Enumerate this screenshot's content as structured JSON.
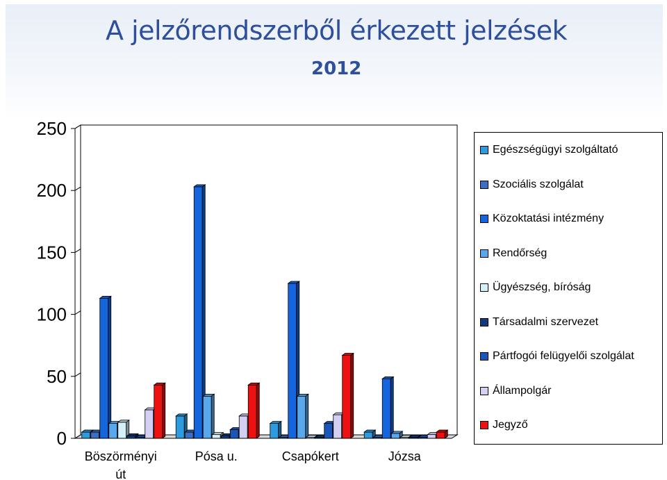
{
  "title": "A jelzőrendszerből érkezett jelzések",
  "subtitle": "2012",
  "chart_data": {
    "type": "bar",
    "categories": [
      "Böszörményi út",
      "Pósa u.",
      "Csapókert",
      "Józsa"
    ],
    "ylim": [
      0,
      250
    ],
    "yticks": [
      "0",
      "50",
      "100",
      "150",
      "200",
      "250"
    ],
    "legend_position": "right",
    "grid": false,
    "series": [
      {
        "name": "Egészségügyi szolgáltató",
        "color": "#2e9bde",
        "values": [
          5,
          18,
          12,
          5
        ]
      },
      {
        "name": "Szociális szolgálat",
        "color": "#3b6fc4",
        "values": [
          5,
          5,
          0,
          0
        ]
      },
      {
        "name": "Közoktatási intézmény",
        "color": "#1565dc",
        "values": [
          113,
          203,
          125,
          48
        ]
      },
      {
        "name": "Rendőrség",
        "color": "#5aa8ec",
        "values": [
          12,
          34,
          34,
          4
        ]
      },
      {
        "name": "Ügyészség, bíróság",
        "color": "#d6f0fb",
        "values": [
          13,
          3,
          0,
          0
        ]
      },
      {
        "name": "Társadalmi szervezet",
        "color": "#123a7c",
        "values": [
          2,
          2,
          0,
          0
        ]
      },
      {
        "name": "Pártfogói felügyelői szolgálat",
        "color": "#1a56b8",
        "values": [
          0,
          7,
          12,
          0
        ]
      },
      {
        "name": "Állampolgár",
        "color": "#d3d0f4",
        "values": [
          23,
          18,
          19,
          3
        ]
      },
      {
        "name": "Jegyző",
        "color": "#ee1111",
        "values": [
          43,
          43,
          67,
          5
        ]
      }
    ]
  }
}
